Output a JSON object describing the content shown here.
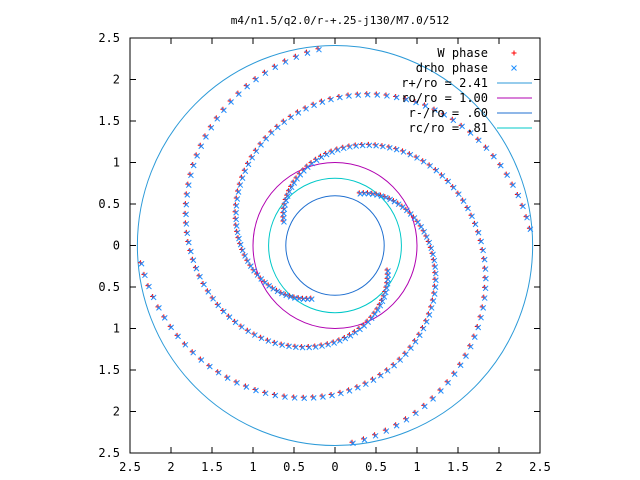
{
  "chart_data": {
    "type": "scatter",
    "title": "m4/n1.5/q2.0/r-+.25-j130/M7.0/512",
    "xlim": [
      -2.5,
      2.5
    ],
    "ylim": [
      -2.5,
      2.5
    ],
    "x_ticks": [
      -2.5,
      -2,
      -1.5,
      -1,
      -0.5,
      0,
      0.5,
      1,
      1.5,
      2,
      2.5
    ],
    "y_ticks": [
      -2.5,
      -2,
      -1.5,
      -1,
      -0.5,
      0,
      0.5,
      1,
      1.5,
      2,
      2.5
    ],
    "x_tick_labels": [
      "2.5",
      "2",
      "1.5",
      "1",
      "0.5",
      "0",
      "0.5",
      "1",
      "1.5",
      "2",
      "2.5"
    ],
    "y_tick_labels": [
      "2.5",
      "2",
      "1.5",
      "1",
      "0.5",
      "0",
      "0.5",
      "1",
      "1.5",
      "2",
      "2.5"
    ],
    "grid": false,
    "legend_position": "top-right",
    "legend": [
      {
        "label": "W phase",
        "kind": "marker",
        "marker": "plus",
        "color": "#ff0000"
      },
      {
        "label": "drho phase",
        "kind": "marker",
        "marker": "cross",
        "color": "#1f8fff"
      },
      {
        "label": "r+/ro = 2.41",
        "kind": "line",
        "color": "#2c9ad8"
      },
      {
        "label": "ro/ro = 1.00",
        "kind": "line",
        "color": "#b000b0"
      },
      {
        "label": "r-/ro = .60",
        "kind": "line",
        "color": "#1f6fd0"
      },
      {
        "label": "rc/ro = .81",
        "kind": "line",
        "color": "#00c8c8"
      }
    ],
    "circles": [
      {
        "name": "r+/ro",
        "radius": 2.41,
        "color": "#2c9ad8"
      },
      {
        "name": "ro/ro",
        "radius": 1.0,
        "color": "#b000b0"
      },
      {
        "name": "r-/ro",
        "radius": 0.6,
        "color": "#1f6fd0"
      },
      {
        "name": "rc/ro",
        "radius": 0.81,
        "color": "#00c8c8"
      }
    ],
    "series": [
      {
        "name": "W phase",
        "marker": "plus",
        "color": "#ff0000",
        "arms": 4,
        "arm_model": {
          "r_start": 0.7,
          "r_end": 2.38,
          "theta_start_deg": 65,
          "winding_deg": 240
        }
      },
      {
        "name": "drho phase",
        "marker": "cross",
        "color": "#1f8fff",
        "arms": 4,
        "arm_model": {
          "r_start": 0.7,
          "r_end": 2.38,
          "theta_start_deg": 65,
          "winding_deg": 240
        }
      }
    ]
  }
}
